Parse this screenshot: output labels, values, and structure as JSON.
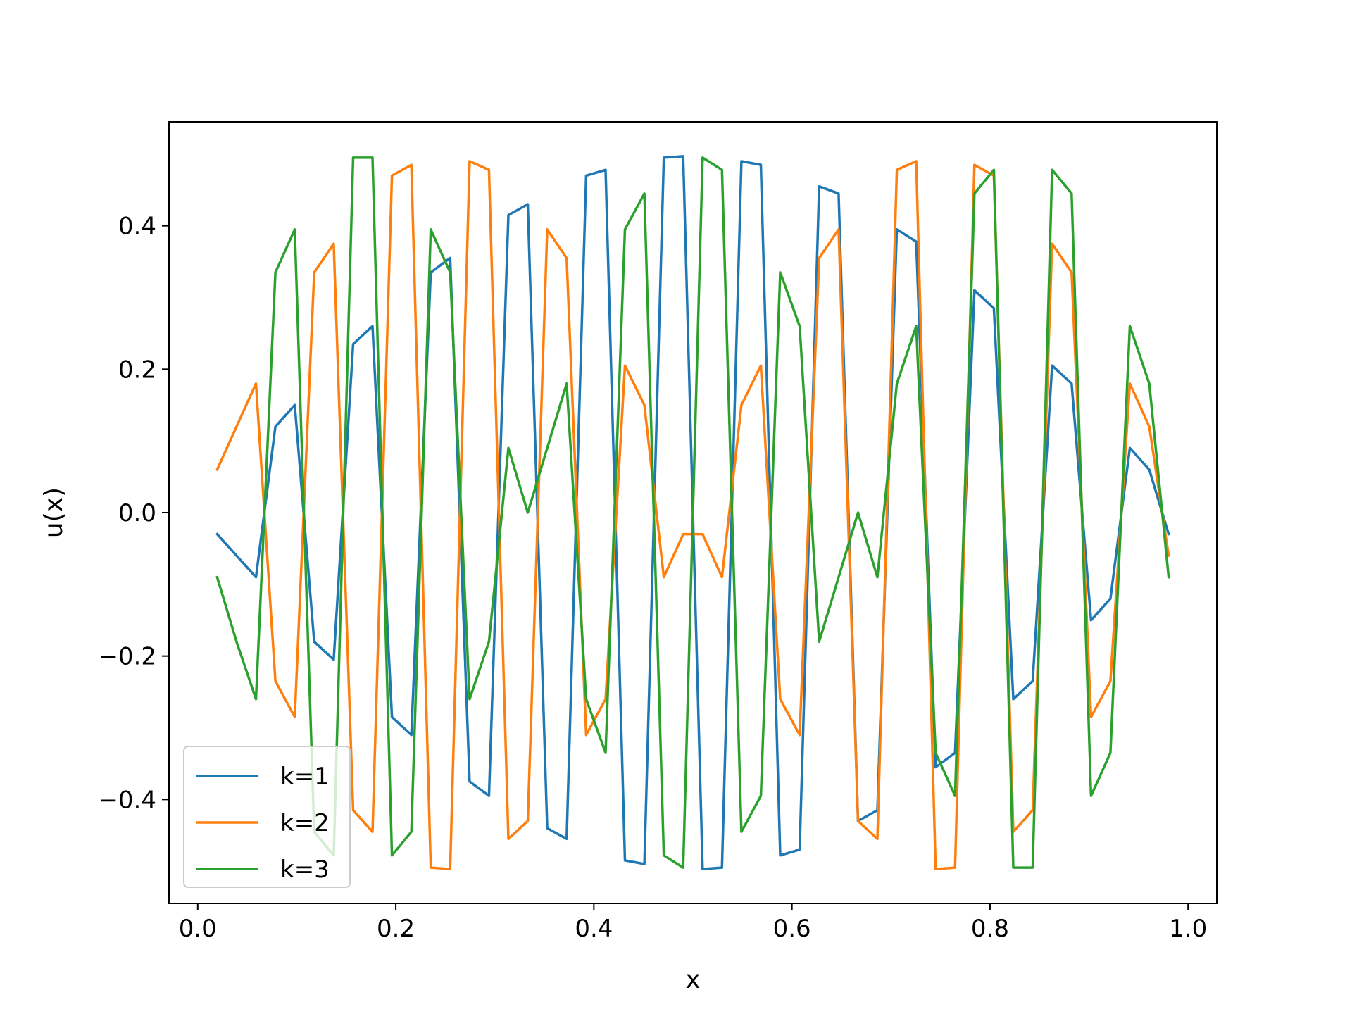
{
  "chart_data": {
    "type": "line",
    "title": "",
    "xlabel": "x",
    "ylabel": "u(x)",
    "xlim": [
      -0.029,
      1.029
    ],
    "ylim": [
      -0.545,
      0.545
    ],
    "xticks": [
      0.0,
      0.2,
      0.4,
      0.6,
      0.8,
      1.0
    ],
    "xtick_labels": [
      "0.0",
      "0.2",
      "0.4",
      "0.6",
      "0.8",
      "1.0"
    ],
    "yticks": [
      -0.4,
      -0.2,
      0.0,
      0.2,
      0.4
    ],
    "ytick_labels": [
      "−0.4",
      "−0.2",
      "0.0",
      "0.2",
      "0.4"
    ],
    "grid": false,
    "legend": "bottom-left",
    "x": [
      0.0196,
      0.0392,
      0.0588,
      0.0784,
      0.098,
      0.1176,
      0.1373,
      0.1569,
      0.1765,
      0.1961,
      0.2157,
      0.2353,
      0.2549,
      0.2745,
      0.2941,
      0.3137,
      0.3333,
      0.3529,
      0.3725,
      0.3922,
      0.4118,
      0.4314,
      0.451,
      0.4706,
      0.4902,
      0.5098,
      0.5294,
      0.549,
      0.5686,
      0.5882,
      0.6078,
      0.6275,
      0.6471,
      0.6667,
      0.6863,
      0.7059,
      0.7255,
      0.7451,
      0.7647,
      0.7843,
      0.8039,
      0.8235,
      0.8431,
      0.8627,
      0.8824,
      0.902,
      0.9216,
      0.9412,
      0.9608,
      0.9804
    ],
    "series": [
      {
        "name": "k=1",
        "color": "#1f77b4",
        "values": [
          -0.03,
          -0.06,
          -0.09,
          0.12,
          0.15,
          -0.18,
          -0.205,
          0.235,
          0.26,
          -0.285,
          -0.31,
          0.335,
          0.355,
          -0.375,
          -0.395,
          0.415,
          0.43,
          -0.44,
          -0.455,
          0.47,
          0.478,
          -0.485,
          -0.49,
          0.495,
          0.497,
          -0.497,
          -0.495,
          0.49,
          0.485,
          -0.478,
          -0.47,
          0.455,
          0.445,
          -0.43,
          -0.415,
          0.395,
          0.378,
          -0.355,
          -0.335,
          0.31,
          0.285,
          -0.26,
          -0.235,
          0.205,
          0.18,
          -0.15,
          -0.12,
          0.09,
          0.06,
          -0.03
        ]
      },
      {
        "name": "k=2",
        "color": "#ff7f0e",
        "values": [
          0.06,
          0.12,
          0.18,
          -0.235,
          -0.285,
          0.335,
          0.375,
          -0.415,
          -0.445,
          0.47,
          0.485,
          -0.495,
          -0.497,
          0.49,
          0.478,
          -0.455,
          -0.43,
          0.395,
          0.355,
          -0.31,
          -0.26,
          0.205,
          0.15,
          -0.09,
          -0.03,
          -0.03,
          -0.09,
          0.15,
          0.205,
          -0.26,
          -0.31,
          0.355,
          0.395,
          -0.43,
          -0.455,
          0.478,
          0.49,
          -0.497,
          -0.495,
          0.485,
          0.47,
          -0.445,
          -0.415,
          0.375,
          0.335,
          -0.285,
          -0.235,
          0.18,
          0.12,
          -0.06
        ]
      },
      {
        "name": "k=3",
        "color": "#2ca02c",
        "values": [
          -0.09,
          -0.18,
          -0.26,
          0.335,
          0.395,
          -0.445,
          -0.478,
          0.495,
          0.495,
          -0.478,
          -0.445,
          0.395,
          0.335,
          -0.26,
          -0.18,
          0.09,
          0.0,
          0.09,
          0.18,
          -0.26,
          -0.335,
          0.395,
          0.445,
          -0.478,
          -0.495,
          0.495,
          0.478,
          -0.445,
          -0.395,
          0.335,
          0.26,
          -0.18,
          -0.09,
          0.0,
          -0.09,
          0.18,
          0.26,
          -0.335,
          -0.395,
          0.445,
          0.478,
          -0.495,
          -0.495,
          0.478,
          0.445,
          -0.395,
          -0.335,
          0.26,
          0.18,
          -0.09
        ]
      }
    ]
  }
}
